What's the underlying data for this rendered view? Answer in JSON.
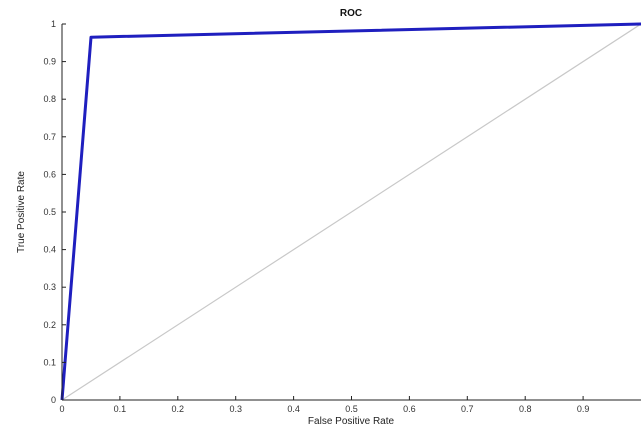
{
  "chart_data": {
    "type": "line",
    "title": "ROC",
    "xlabel": "False Positive Rate",
    "ylabel": "True Positive Rate",
    "xlim": [
      0,
      1
    ],
    "ylim": [
      0,
      1
    ],
    "xticks": [
      "0",
      "0.1",
      "0.2",
      "0.3",
      "0.4",
      "0.5",
      "0.6",
      "0.7",
      "0.8",
      "0.9"
    ],
    "yticks": [
      "0",
      "0.1",
      "0.2",
      "0.3",
      "0.4",
      "0.5",
      "0.6",
      "0.7",
      "0.8",
      "0.9",
      "1"
    ],
    "grid": false,
    "series": [
      {
        "color": "#1f1fbf",
        "points": [
          [
            0,
            0
          ],
          [
            0.05,
            0.965
          ],
          [
            1,
            1
          ]
        ]
      },
      {
        "color": "#c8c8c8",
        "points": [
          [
            0,
            0
          ],
          [
            1,
            1
          ]
        ]
      }
    ]
  }
}
